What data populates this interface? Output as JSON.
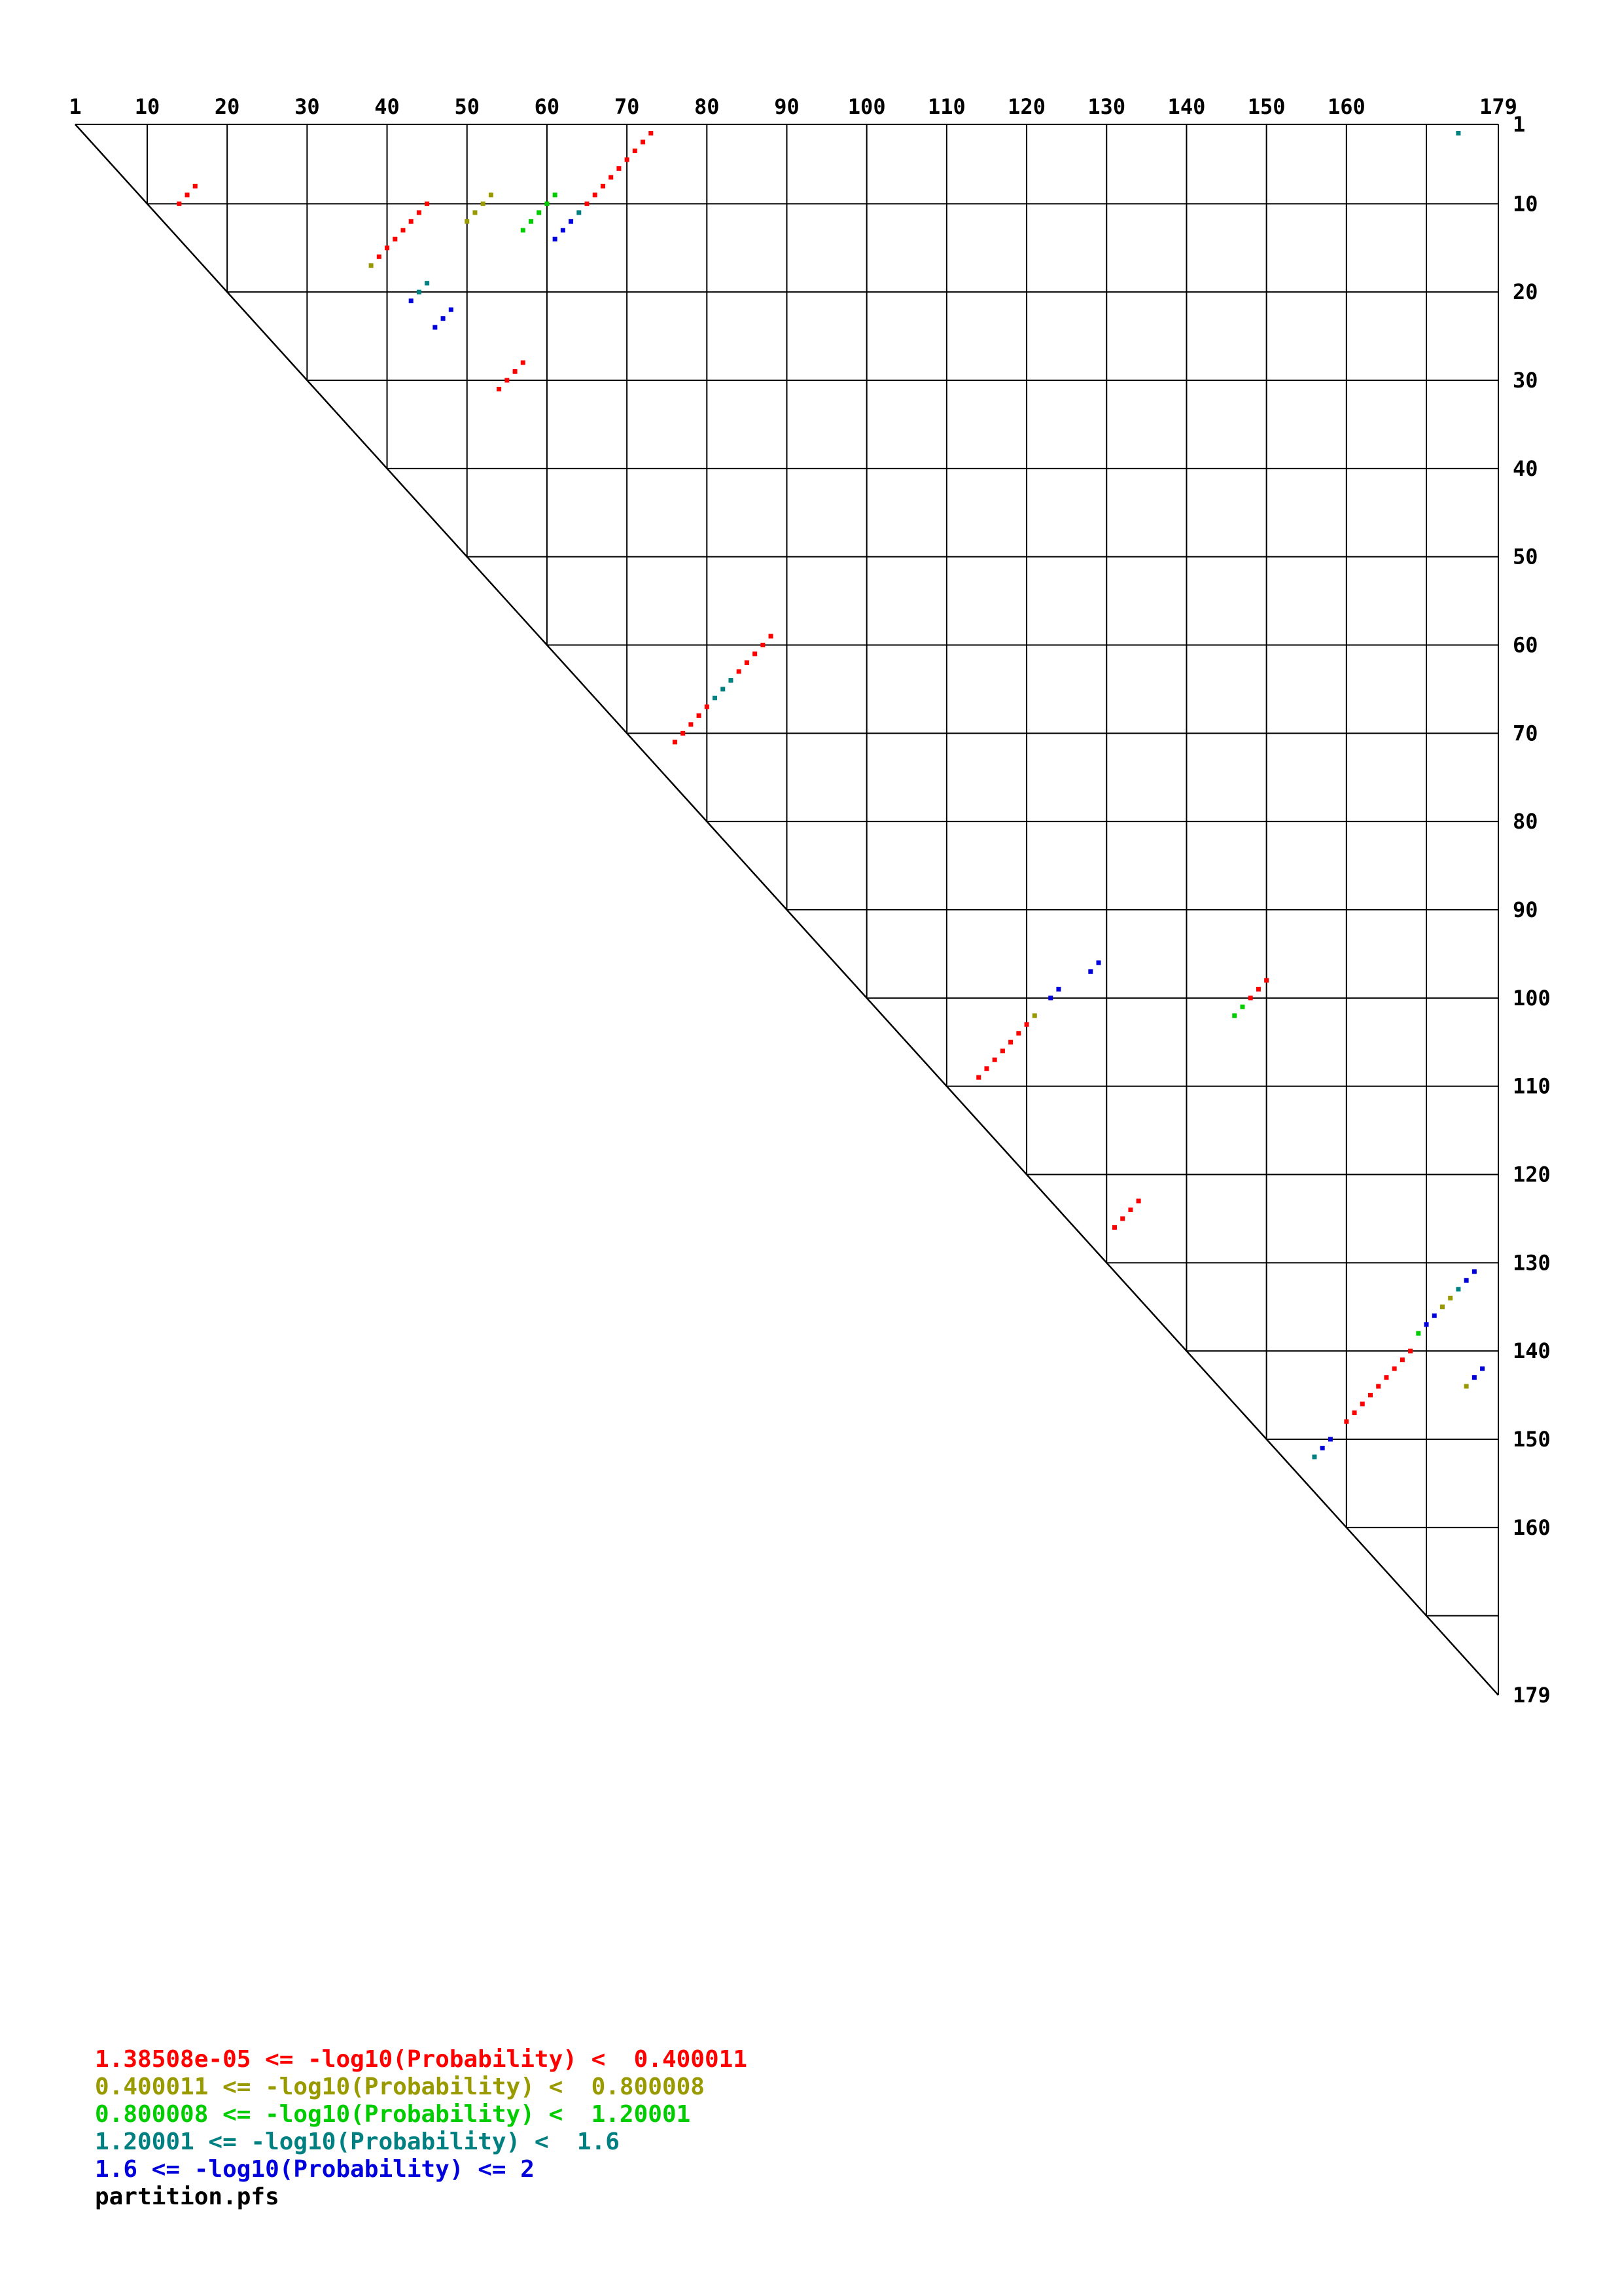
{
  "chart_data": {
    "type": "scatter",
    "title": "",
    "sequence_length": 179,
    "x_tick_labels": [
      1,
      10,
      20,
      30,
      40,
      50,
      60,
      70,
      80,
      90,
      100,
      110,
      120,
      130,
      140,
      150,
      160,
      179
    ],
    "y_tick_labels": [
      1,
      10,
      20,
      30,
      40,
      50,
      60,
      70,
      80,
      90,
      100,
      110,
      120,
      130,
      140,
      150,
      160,
      179
    ],
    "gridlines": [
      1,
      10,
      20,
      30,
      40,
      50,
      60,
      70,
      80,
      90,
      100,
      110,
      120,
      130,
      140,
      150,
      160,
      170,
      179
    ],
    "axis_range": [
      1,
      179
    ],
    "classes": [
      {
        "name": "probability-class-1",
        "color": "#ff0000",
        "text": "1.38508e-05 <= -log10(Probability) <  0.400011"
      },
      {
        "name": "probability-class-2",
        "color": "#999900",
        "text": "0.400011 <= -log10(Probability) <  0.800008"
      },
      {
        "name": "probability-class-3",
        "color": "#00cc00",
        "text": "0.800008 <= -log10(Probability) <  1.20001"
      },
      {
        "name": "probability-class-4",
        "color": "#008080",
        "text": "1.20001 <= -log10(Probability) <  1.6"
      },
      {
        "name": "probability-class-5",
        "color": "#0000dd",
        "text": "1.6 <= -log10(Probability) <= 2"
      }
    ],
    "footer": "partition.pfs",
    "points": [
      [
        2,
        174,
        3
      ],
      [
        2,
        73,
        0
      ],
      [
        3,
        72,
        0
      ],
      [
        4,
        71,
        0
      ],
      [
        5,
        70,
        0
      ],
      [
        6,
        69,
        0
      ],
      [
        7,
        68,
        0
      ],
      [
        8,
        67,
        0
      ],
      [
        9,
        66,
        0
      ],
      [
        10,
        65,
        0
      ],
      [
        11,
        64,
        3
      ],
      [
        12,
        63,
        4
      ],
      [
        13,
        62,
        4
      ],
      [
        14,
        61,
        4
      ],
      [
        9,
        61,
        2
      ],
      [
        10,
        60,
        2
      ],
      [
        11,
        59,
        2
      ],
      [
        12,
        58,
        2
      ],
      [
        13,
        57,
        2
      ],
      [
        9,
        53,
        1
      ],
      [
        10,
        52,
        1
      ],
      [
        11,
        51,
        1
      ],
      [
        12,
        50,
        1
      ],
      [
        10,
        45,
        0
      ],
      [
        11,
        44,
        0
      ],
      [
        12,
        43,
        0
      ],
      [
        13,
        42,
        0
      ],
      [
        14,
        41,
        0
      ],
      [
        15,
        40,
        0
      ],
      [
        16,
        39,
        0
      ],
      [
        17,
        38,
        1
      ],
      [
        8,
        16,
        0
      ],
      [
        9,
        15,
        0
      ],
      [
        10,
        14,
        0
      ],
      [
        19,
        45,
        3
      ],
      [
        20,
        44,
        3
      ],
      [
        21,
        43,
        4
      ],
      [
        22,
        48,
        4
      ],
      [
        23,
        47,
        4
      ],
      [
        24,
        46,
        4
      ],
      [
        28,
        57,
        0
      ],
      [
        29,
        56,
        0
      ],
      [
        30,
        55,
        0
      ],
      [
        31,
        54,
        0
      ],
      [
        59,
        88,
        0
      ],
      [
        60,
        87,
        0
      ],
      [
        61,
        86,
        0
      ],
      [
        62,
        85,
        0
      ],
      [
        63,
        84,
        0
      ],
      [
        64,
        83,
        3
      ],
      [
        65,
        82,
        3
      ],
      [
        66,
        81,
        3
      ],
      [
        67,
        80,
        0
      ],
      [
        68,
        79,
        0
      ],
      [
        69,
        78,
        0
      ],
      [
        70,
        77,
        0
      ],
      [
        71,
        76,
        0
      ],
      [
        96,
        129,
        4
      ],
      [
        97,
        128,
        4
      ],
      [
        99,
        124,
        4
      ],
      [
        100,
        123,
        4
      ],
      [
        102,
        121,
        1
      ],
      [
        103,
        120,
        0
      ],
      [
        104,
        119,
        0
      ],
      [
        105,
        118,
        0
      ],
      [
        106,
        117,
        0
      ],
      [
        107,
        116,
        0
      ],
      [
        108,
        115,
        0
      ],
      [
        109,
        114,
        0
      ],
      [
        98,
        150,
        0
      ],
      [
        99,
        149,
        0
      ],
      [
        100,
        148,
        0
      ],
      [
        101,
        147,
        2
      ],
      [
        102,
        146,
        2
      ],
      [
        123,
        134,
        0
      ],
      [
        124,
        133,
        0
      ],
      [
        125,
        132,
        0
      ],
      [
        126,
        131,
        0
      ],
      [
        131,
        176,
        4
      ],
      [
        132,
        175,
        4
      ],
      [
        133,
        174,
        3
      ],
      [
        134,
        173,
        1
      ],
      [
        135,
        172,
        1
      ],
      [
        136,
        171,
        4
      ],
      [
        137,
        170,
        4
      ],
      [
        138,
        169,
        2
      ],
      [
        142,
        177,
        4
      ],
      [
        143,
        176,
        4
      ],
      [
        144,
        175,
        1
      ],
      [
        140,
        168,
        0
      ],
      [
        141,
        167,
        0
      ],
      [
        142,
        166,
        0
      ],
      [
        143,
        165,
        0
      ],
      [
        144,
        164,
        0
      ],
      [
        145,
        163,
        0
      ],
      [
        146,
        162,
        0
      ],
      [
        147,
        161,
        0
      ],
      [
        148,
        160,
        0
      ],
      [
        150,
        158,
        4
      ],
      [
        151,
        157,
        4
      ],
      [
        152,
        156,
        3
      ]
    ]
  }
}
